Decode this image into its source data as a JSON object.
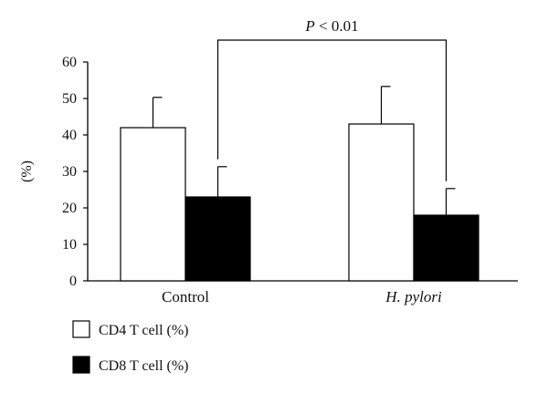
{
  "chart_data": {
    "type": "bar",
    "categories": [
      "Control",
      "H. pylori"
    ],
    "category_italic": [
      false,
      true
    ],
    "series": [
      {
        "name": "CD4 T cell (%)",
        "values": [
          42,
          43
        ],
        "error": [
          8.3,
          10.3
        ],
        "color": "#ffffff"
      },
      {
        "name": "CD8 T cell (%)",
        "values": [
          23,
          18
        ],
        "error": [
          8.3,
          7.3
        ],
        "color": "#000000"
      }
    ],
    "ylabel": "(%)",
    "xlabel": "",
    "ylim": [
      0,
      60
    ],
    "yticks": [
      0,
      10,
      20,
      30,
      40,
      50,
      60
    ],
    "grid": false,
    "legend_position": "bottom-left",
    "annotation": {
      "text_italic": "P",
      "text_rest": " < 0.01",
      "compares": [
        "Control CD8 T cell (%)",
        "H. pylori CD8 T cell (%)"
      ]
    }
  }
}
